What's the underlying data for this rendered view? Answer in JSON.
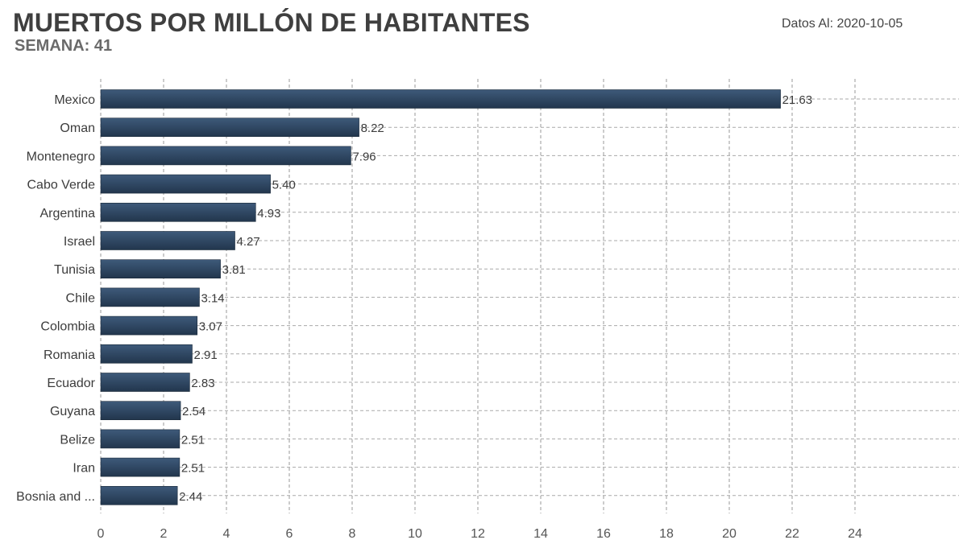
{
  "header": {
    "title": "MUERTOS POR MILLÓN DE HABITANTES",
    "subtitle": "SEMANA: 41",
    "date_text": "Datos Al: 2020-10-05"
  },
  "chart_data": {
    "type": "bar",
    "orientation": "horizontal",
    "categories": [
      "Mexico",
      "Oman",
      "Montenegro",
      "Cabo Verde",
      "Argentina",
      "Israel",
      "Tunisia",
      "Chile",
      "Colombia",
      "Romania",
      "Ecuador",
      "Guyana",
      "Belize",
      "Iran",
      "Bosnia and ..."
    ],
    "values": [
      21.63,
      8.22,
      7.96,
      5.4,
      4.93,
      4.27,
      3.81,
      3.14,
      3.07,
      2.91,
      2.83,
      2.54,
      2.51,
      2.51,
      2.44
    ],
    "value_labels": [
      "21.63",
      "8.22",
      "7.96",
      "5.40",
      "4.93",
      "4.27",
      "3.81",
      "3.14",
      "3.07",
      "2.91",
      "2.83",
      "2.54",
      "2.51",
      "2.51",
      "2.44"
    ],
    "xlim": [
      0,
      24
    ],
    "xticks": [
      0,
      2,
      4,
      6,
      8,
      10,
      12,
      14,
      16,
      18,
      20,
      22,
      24
    ],
    "grid": true,
    "bar_color": "#2d4560"
  }
}
